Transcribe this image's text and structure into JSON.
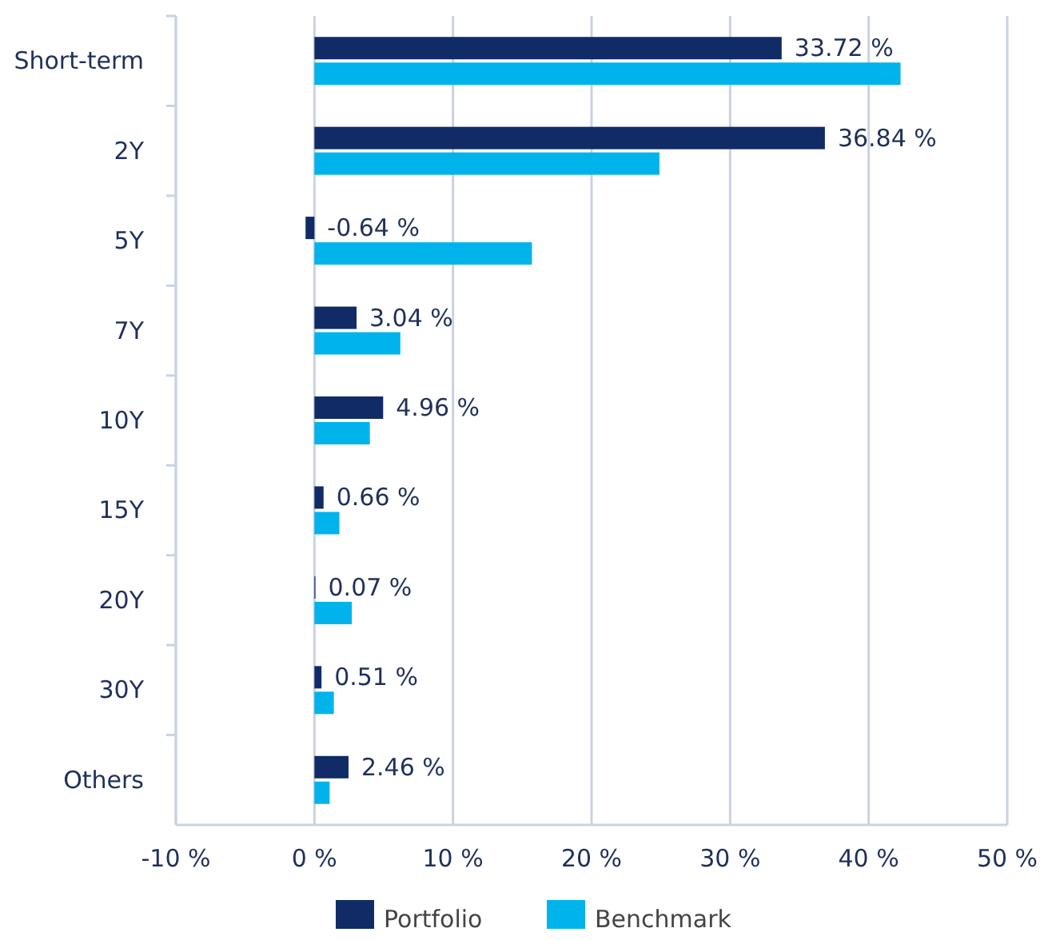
{
  "chart_data": {
    "type": "bar",
    "orientation": "horizontal",
    "categories": [
      "Short-term",
      "2Y",
      "5Y",
      "7Y",
      "10Y",
      "15Y",
      "20Y",
      "30Y",
      "Others"
    ],
    "series": [
      {
        "name": "Portfolio",
        "color": "#112b67",
        "values": [
          33.72,
          36.84,
          -0.64,
          3.04,
          4.96,
          0.66,
          0.07,
          0.51,
          2.46
        ],
        "value_labels": [
          "33.72 %",
          "36.84 %",
          "-0.64 %",
          "3.04 %",
          "4.96 %",
          "0.66 %",
          "0.07 %",
          "0.51 %",
          "2.46 %"
        ]
      },
      {
        "name": "Benchmark",
        "color": "#00b4eb",
        "values": [
          42.3,
          24.9,
          15.7,
          6.2,
          4.0,
          1.8,
          2.7,
          1.4,
          1.1
        ]
      }
    ],
    "xlim": [
      -10,
      50
    ],
    "xticks": [
      {
        "value": -10,
        "label": "-10 %"
      },
      {
        "value": 0,
        "label": "0 %"
      },
      {
        "value": 10,
        "label": "10 %"
      },
      {
        "value": 20,
        "label": "20 %"
      },
      {
        "value": 30,
        "label": "30 %"
      },
      {
        "value": 40,
        "label": "40 %"
      },
      {
        "value": 50,
        "label": "50 %"
      }
    ],
    "grid": "x",
    "legend": "bottom"
  }
}
